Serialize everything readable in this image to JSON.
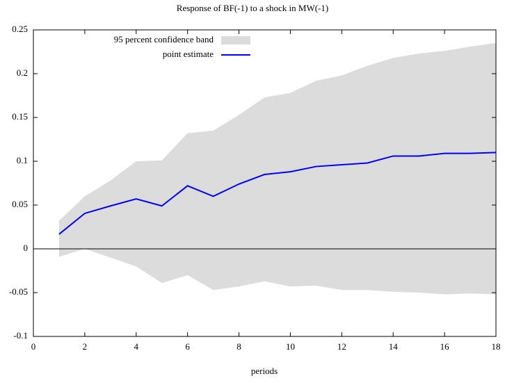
{
  "chart_data": {
    "type": "band-line",
    "title": "Response of BF(-1) to a shock in MW(-1)",
    "x_label": "periods",
    "x": [
      1,
      2,
      3,
      4,
      5,
      6,
      7,
      8,
      9,
      10,
      11,
      12,
      13,
      14,
      15,
      16,
      17,
      18
    ],
    "series": [
      {
        "name": "95 percent confidence band",
        "color": "#dcdcdc",
        "upper": [
          0.032,
          0.06,
          0.078,
          0.1,
          0.101,
          0.132,
          0.135,
          0.153,
          0.173,
          0.178,
          0.192,
          0.198,
          0.209,
          0.218,
          0.223,
          0.226,
          0.231,
          0.235
        ],
        "lower": [
          -0.009,
          0.0,
          -0.01,
          -0.02,
          -0.039,
          -0.03,
          -0.047,
          -0.043,
          -0.037,
          -0.043,
          -0.042,
          -0.047,
          -0.047,
          -0.049,
          -0.05,
          -0.052,
          -0.051,
          -0.052
        ]
      },
      {
        "name": "point estimate",
        "color": "#0000ff",
        "values": [
          0.0167,
          0.0405,
          0.049,
          0.057,
          0.049,
          0.072,
          0.06,
          0.074,
          0.085,
          0.088,
          0.094,
          0.096,
          0.098,
          0.106,
          0.106,
          0.109,
          0.109,
          0.11
        ]
      }
    ],
    "xlim": [
      0,
      18
    ],
    "xticks": [
      0,
      2,
      4,
      6,
      8,
      10,
      12,
      14,
      16,
      18
    ],
    "ylim": [
      -0.1,
      0.25
    ],
    "yticks": [
      -0.1,
      -0.05,
      0,
      0.05,
      0.1,
      0.15,
      0.2,
      0.25
    ],
    "legend": "upper-left"
  }
}
